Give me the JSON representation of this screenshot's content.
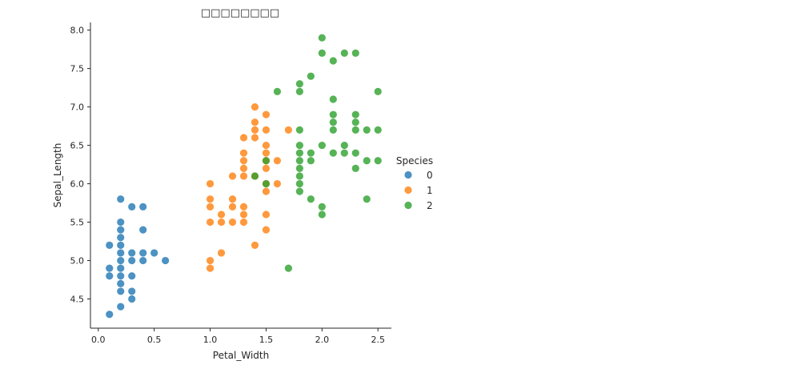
{
  "chart_data": {
    "type": "scatter",
    "title": "□□□□□□□□",
    "xlabel": "Petal_Width",
    "ylabel": "Sepal_Length",
    "xlim": [
      -0.07,
      2.62
    ],
    "ylim": [
      4.12,
      8.1
    ],
    "xticks": [
      0.0,
      0.5,
      1.0,
      1.5,
      2.0,
      2.5
    ],
    "xtick_labels": [
      "0.0",
      "0.5",
      "1.0",
      "1.5",
      "2.0",
      "2.5"
    ],
    "yticks": [
      4.5,
      5.0,
      5.5,
      6.0,
      6.5,
      7.0,
      7.5,
      8.0
    ],
    "ytick_labels": [
      "4.5",
      "5.0",
      "5.5",
      "6.0",
      "6.5",
      "7.0",
      "7.5",
      "8.0"
    ],
    "grid": false,
    "legend": {
      "title": "Species",
      "placement": "right"
    },
    "series": [
      {
        "name": "0",
        "color": "#1f77b4",
        "points": [
          [
            0.1,
            4.3
          ],
          [
            0.1,
            4.8
          ],
          [
            0.1,
            4.9
          ],
          [
            0.1,
            5.2
          ],
          [
            0.2,
            4.4
          ],
          [
            0.2,
            4.6
          ],
          [
            0.2,
            4.7
          ],
          [
            0.2,
            4.8
          ],
          [
            0.2,
            4.9
          ],
          [
            0.2,
            5.0
          ],
          [
            0.2,
            5.1
          ],
          [
            0.2,
            5.2
          ],
          [
            0.2,
            5.3
          ],
          [
            0.2,
            5.4
          ],
          [
            0.2,
            5.5
          ],
          [
            0.2,
            5.8
          ],
          [
            0.3,
            4.5
          ],
          [
            0.3,
            4.6
          ],
          [
            0.3,
            4.8
          ],
          [
            0.3,
            5.0
          ],
          [
            0.3,
            5.1
          ],
          [
            0.3,
            5.7
          ],
          [
            0.4,
            5.0
          ],
          [
            0.4,
            5.1
          ],
          [
            0.4,
            5.4
          ],
          [
            0.4,
            5.7
          ],
          [
            0.5,
            5.1
          ],
          [
            0.6,
            5.0
          ]
        ]
      },
      {
        "name": "1",
        "color": "#ff7f0e",
        "points": [
          [
            1.0,
            4.9
          ],
          [
            1.0,
            5.0
          ],
          [
            1.0,
            5.5
          ],
          [
            1.0,
            5.7
          ],
          [
            1.0,
            5.8
          ],
          [
            1.0,
            6.0
          ],
          [
            1.1,
            5.1
          ],
          [
            1.1,
            5.5
          ],
          [
            1.1,
            5.6
          ],
          [
            1.2,
            5.5
          ],
          [
            1.2,
            5.7
          ],
          [
            1.2,
            5.8
          ],
          [
            1.2,
            6.1
          ],
          [
            1.3,
            5.5
          ],
          [
            1.3,
            5.6
          ],
          [
            1.3,
            5.7
          ],
          [
            1.3,
            6.1
          ],
          [
            1.3,
            6.2
          ],
          [
            1.3,
            6.3
          ],
          [
            1.3,
            6.4
          ],
          [
            1.3,
            6.6
          ],
          [
            1.4,
            5.2
          ],
          [
            1.4,
            6.1
          ],
          [
            1.4,
            6.6
          ],
          [
            1.4,
            6.7
          ],
          [
            1.4,
            6.8
          ],
          [
            1.4,
            7.0
          ],
          [
            1.5,
            5.4
          ],
          [
            1.5,
            5.6
          ],
          [
            1.5,
            5.9
          ],
          [
            1.5,
            6.0
          ],
          [
            1.5,
            6.2
          ],
          [
            1.5,
            6.3
          ],
          [
            1.5,
            6.4
          ],
          [
            1.5,
            6.5
          ],
          [
            1.5,
            6.7
          ],
          [
            1.5,
            6.9
          ],
          [
            1.6,
            6.0
          ],
          [
            1.6,
            6.3
          ],
          [
            1.7,
            6.7
          ]
        ]
      },
      {
        "name": "2",
        "color": "#2ca02c",
        "points": [
          [
            1.4,
            6.1
          ],
          [
            1.5,
            6.0
          ],
          [
            1.5,
            6.3
          ],
          [
            1.6,
            7.2
          ],
          [
            1.7,
            4.9
          ],
          [
            1.8,
            5.9
          ],
          [
            1.8,
            6.0
          ],
          [
            1.8,
            6.1
          ],
          [
            1.8,
            6.2
          ],
          [
            1.8,
            6.3
          ],
          [
            1.8,
            6.4
          ],
          [
            1.8,
            6.5
          ],
          [
            1.8,
            6.7
          ],
          [
            1.8,
            7.2
          ],
          [
            1.8,
            7.3
          ],
          [
            1.9,
            5.8
          ],
          [
            1.9,
            6.3
          ],
          [
            1.9,
            6.4
          ],
          [
            1.9,
            7.4
          ],
          [
            2.0,
            5.6
          ],
          [
            2.0,
            5.7
          ],
          [
            2.0,
            6.5
          ],
          [
            2.0,
            7.7
          ],
          [
            2.0,
            7.9
          ],
          [
            2.1,
            6.4
          ],
          [
            2.1,
            6.7
          ],
          [
            2.1,
            6.8
          ],
          [
            2.1,
            6.9
          ],
          [
            2.1,
            7.1
          ],
          [
            2.1,
            7.6
          ],
          [
            2.2,
            6.4
          ],
          [
            2.2,
            6.5
          ],
          [
            2.2,
            7.7
          ],
          [
            2.3,
            6.2
          ],
          [
            2.3,
            6.4
          ],
          [
            2.3,
            6.7
          ],
          [
            2.3,
            6.8
          ],
          [
            2.3,
            6.9
          ],
          [
            2.3,
            7.7
          ],
          [
            2.4,
            5.8
          ],
          [
            2.4,
            6.3
          ],
          [
            2.4,
            6.7
          ],
          [
            2.5,
            6.3
          ],
          [
            2.5,
            6.7
          ],
          [
            2.5,
            7.2
          ]
        ]
      }
    ]
  }
}
